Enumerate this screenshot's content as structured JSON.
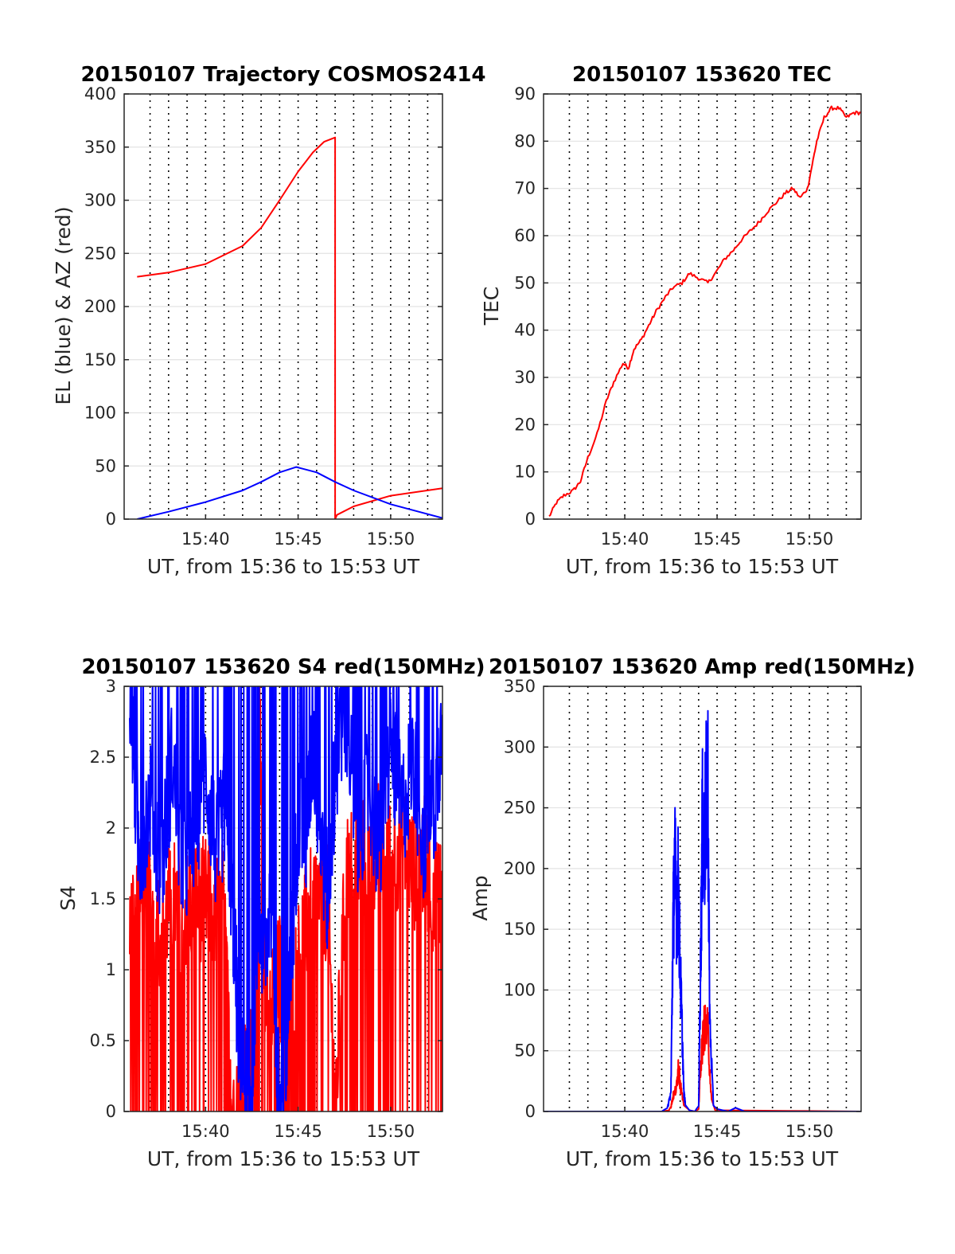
{
  "chart_data": [
    {
      "type": "line",
      "title": "20150107 Trajectory COSMOS2414",
      "xlabel": "UT, from 15:36 to 15:53 UT",
      "ylabel": "EL (blue) & AZ (red)",
      "xlim": [
        15.6,
        32.8
      ],
      "ylim": [
        0,
        400
      ],
      "xticks": [
        20,
        25,
        30
      ],
      "xtick_labels": [
        "15:40",
        "15:45",
        "15:50"
      ],
      "yticks": [
        0,
        50,
        100,
        150,
        200,
        250,
        300,
        350,
        400
      ],
      "ytick_labels": [
        "0",
        "50",
        "100",
        "150",
        "200",
        "250",
        "300",
        "350",
        "400"
      ],
      "grid": true,
      "minute_grid": [
        17,
        18,
        19,
        20,
        21,
        22,
        23,
        24,
        25,
        26,
        27,
        28,
        29,
        30,
        31,
        32
      ],
      "series": [
        {
          "color": "#ff0000",
          "x": [
            16.3,
            18,
            20,
            22,
            23,
            24,
            25,
            25.8,
            26.4,
            27.0,
            27.0,
            27.1,
            28,
            30,
            32.8
          ],
          "y": [
            228,
            232,
            240,
            257,
            274,
            300,
            327,
            345,
            355,
            359,
            0,
            4,
            12,
            22,
            29
          ]
        },
        {
          "color": "#0000ff",
          "x": [
            16.3,
            18,
            20,
            22,
            23,
            24,
            24.9,
            26,
            27,
            28,
            30,
            32.8
          ],
          "y": [
            0,
            7,
            16,
            27,
            35,
            44,
            49,
            44,
            35,
            27,
            14,
            1
          ]
        }
      ]
    },
    {
      "type": "line",
      "title": "20150107 153620 TEC",
      "xlabel": "UT, from 15:36 to 15:53 UT",
      "ylabel": "TEC",
      "xlim": [
        15.6,
        32.8
      ],
      "ylim": [
        0,
        90
      ],
      "xticks": [
        20,
        25,
        30
      ],
      "xtick_labels": [
        "15:40",
        "15:45",
        "15:50"
      ],
      "yticks": [
        0,
        10,
        20,
        30,
        40,
        50,
        60,
        70,
        80,
        90
      ],
      "ytick_labels": [
        "0",
        "10",
        "20",
        "30",
        "40",
        "50",
        "60",
        "70",
        "80",
        "90"
      ],
      "grid": true,
      "minute_grid": [
        17,
        18,
        19,
        20,
        21,
        22,
        23,
        24,
        25,
        26,
        27,
        28,
        29,
        30,
        31,
        32
      ],
      "series": [
        {
          "color": "#ff0000",
          "x": [
            15.9,
            16.3,
            16.7,
            17.2,
            17.6,
            18.0,
            18.5,
            19.0,
            19.4,
            19.9,
            20.2,
            20.5,
            20.9,
            21.3,
            21.7,
            22.2,
            22.6,
            23.1,
            23.5,
            24.0,
            24.5,
            24.9,
            25.4,
            25.9,
            26.3,
            26.8,
            27.3,
            27.7,
            28.2,
            28.7,
            29.1,
            29.5,
            29.9,
            30.2,
            30.4,
            30.8,
            31.2,
            31.6,
            32.0,
            32.4,
            32.8
          ],
          "y": [
            0.5,
            3.5,
            5,
            6,
            8,
            13,
            18,
            25,
            29,
            33,
            32,
            36,
            38,
            41,
            44,
            47,
            49,
            50,
            52,
            51,
            50,
            52,
            55,
            57,
            59,
            61,
            63,
            65,
            67,
            69,
            70,
            68,
            70,
            76,
            80,
            85,
            87,
            87,
            85,
            86,
            86
          ]
        }
      ]
    },
    {
      "type": "line",
      "title": "20150107 153620 S4 red(150MHz)",
      "xlabel": "UT, from 15:36 to 15:53 UT",
      "ylabel": "S4",
      "xlim": [
        15.6,
        32.8
      ],
      "ylim": [
        0,
        3
      ],
      "xticks": [
        20,
        25,
        30
      ],
      "xtick_labels": [
        "15:40",
        "15:45",
        "15:50"
      ],
      "yticks": [
        0,
        0.5,
        1,
        1.5,
        2,
        2.5,
        3
      ],
      "ytick_labels": [
        "0",
        "0.5",
        "1",
        "1.5",
        "2",
        "2.5",
        "3"
      ],
      "grid": true,
      "minute_grid": [
        17,
        18,
        19,
        20,
        21,
        22,
        23,
        24,
        25,
        26,
        27,
        28,
        29,
        30,
        31,
        32
      ],
      "series": [
        {
          "color": "#ff0000",
          "x": [
            15.9,
            16.4,
            17.0,
            17.6,
            18.2,
            18.8,
            19.4,
            20.0,
            20.6,
            21.1,
            21.4,
            21.9,
            22.3,
            22.7,
            22.9,
            23.2,
            23.6,
            24.0,
            24.4,
            24.7,
            25.2,
            25.6,
            26.0,
            26.6,
            27.0,
            27.6,
            28.2,
            28.8,
            29.4,
            30.0,
            30.6,
            31.2,
            31.8,
            32.4,
            32.8
          ],
          "y": [
            1.3,
            1.5,
            1.45,
            1.3,
            1.5,
            1.4,
            1.5,
            1.5,
            1.4,
            1.5,
            0.0,
            0.0,
            0.4,
            0.7,
            2.9,
            1.0,
            0.7,
            1.0,
            0.3,
            0.8,
            1.2,
            1.4,
            1.5,
            1.5,
            0.0,
            1.7,
            1.8,
            1.8,
            1.9,
            1.8,
            1.9,
            1.7,
            1.8,
            1.5,
            1.7
          ],
          "note": "dense scintillation trace; dips to 0 throughout"
        },
        {
          "color": "#0000ff",
          "x": [
            15.9,
            16.4,
            17.0,
            17.6,
            18.2,
            18.8,
            19.4,
            20.0,
            20.6,
            21.1,
            21.4,
            21.8,
            22.2,
            22.5,
            22.8,
            23.2,
            23.6,
            23.9,
            24.3,
            24.6,
            25.0,
            25.4,
            25.8,
            26.2,
            26.6,
            27.0,
            27.6,
            28.2,
            28.8,
            29.4,
            30.0,
            30.6,
            31.2,
            31.8,
            32.4,
            32.8
          ],
          "y": [
            3.0,
            1.8,
            2.2,
            1.7,
            2.5,
            1.6,
            2.0,
            2.4,
            1.8,
            2.2,
            1.6,
            0.5,
            0.15,
            0.2,
            1.4,
            1.1,
            1.6,
            0.2,
            0.12,
            1.0,
            2.1,
            1.9,
            2.6,
            2.0,
            1.5,
            2.4,
            2.8,
            1.9,
            2.3,
            1.8,
            2.6,
            2.1,
            2.5,
            1.9,
            2.2,
            2.8
          ],
          "note": "dense scintillation trace; frequently saturates at 3"
        }
      ]
    },
    {
      "type": "line",
      "title": "20150107 153620 Amp red(150MHz)",
      "xlabel": "UT, from 15:36 to 15:53 UT",
      "ylabel": "Amp",
      "xlim": [
        15.6,
        32.8
      ],
      "ylim": [
        0,
        350
      ],
      "xticks": [
        20,
        25,
        30
      ],
      "xtick_labels": [
        "15:40",
        "15:45",
        "15:50"
      ],
      "yticks": [
        0,
        50,
        100,
        150,
        200,
        250,
        300,
        350
      ],
      "ytick_labels": [
        "0",
        "50",
        "100",
        "150",
        "200",
        "250",
        "300",
        "350"
      ],
      "grid": true,
      "minute_grid": [
        17,
        18,
        19,
        20,
        21,
        22,
        23,
        24,
        25,
        26,
        27,
        28,
        29,
        30,
        31,
        32
      ],
      "series": [
        {
          "color": "#ff0000",
          "x": [
            15.6,
            22.0,
            22.4,
            22.5,
            22.6,
            22.8,
            22.9,
            23.0,
            23.2,
            23.5,
            23.8,
            24.0,
            24.1,
            24.3,
            24.5,
            24.7,
            24.9,
            32.8
          ],
          "y": [
            0,
            0,
            1,
            5,
            15,
            25,
            50,
            30,
            5,
            1,
            0,
            2,
            50,
            90,
            85,
            10,
            1,
            0
          ]
        },
        {
          "color": "#0000ff",
          "x": [
            15.6,
            22.0,
            22.3,
            22.5,
            22.6,
            22.7,
            22.8,
            22.9,
            23.0,
            23.1,
            23.2,
            23.3,
            23.5,
            23.8,
            24.0,
            24.1,
            24.2,
            24.3,
            24.4,
            24.5,
            24.6,
            24.8,
            25.0,
            25.6,
            26.0,
            26.5,
            32.8
          ],
          "y": [
            0,
            0,
            3,
            20,
            180,
            266,
            220,
            240,
            150,
            90,
            20,
            5,
            1,
            0,
            5,
            150,
            300,
            280,
            320,
            347,
            100,
            5,
            2,
            0,
            3,
            0,
            0
          ]
        }
      ]
    }
  ]
}
